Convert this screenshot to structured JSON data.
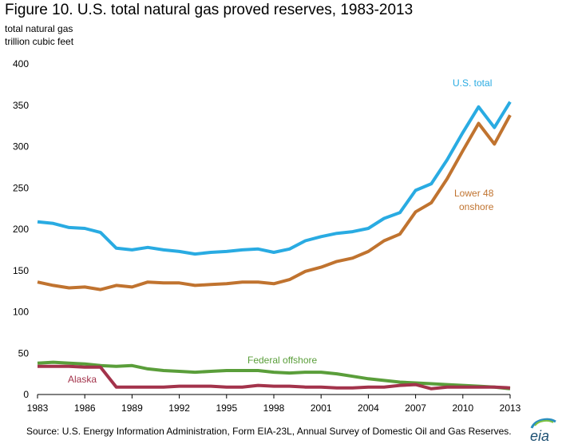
{
  "title": "Figure 10. U.S. total natural gas proved reserves, 1983-2013",
  "ylabel_line1": "total natural gas",
  "ylabel_line2": "trillion cubic feet",
  "source": "Source: U.S. Energy Information Administration, Form EIA-23L, Annual Survey of Domestic Oil and Gas Reserves.",
  "logo_text": "eia",
  "chart_data": {
    "type": "line",
    "xlim": [
      1983,
      2013
    ],
    "ylim": [
      0,
      400
    ],
    "x_ticks": [
      1983,
      1986,
      1989,
      1992,
      1995,
      1998,
      2001,
      2004,
      2007,
      2010,
      2013
    ],
    "y_ticks": [
      0,
      50,
      100,
      150,
      200,
      250,
      300,
      350,
      400
    ],
    "grid": false,
    "x": [
      1983,
      1984,
      1985,
      1986,
      1987,
      1988,
      1989,
      1990,
      1991,
      1992,
      1993,
      1994,
      1995,
      1996,
      1997,
      1998,
      1999,
      2000,
      2001,
      2002,
      2003,
      2004,
      2005,
      2006,
      2007,
      2008,
      2009,
      2010,
      2011,
      2012,
      2013
    ],
    "series": [
      {
        "name": "U.S. total",
        "color": "#29abe2",
        "values": [
          209,
          207,
          202,
          201,
          196,
          177,
          175,
          178,
          175,
          173,
          170,
          172,
          173,
          175,
          176,
          172,
          176,
          186,
          191,
          195,
          197,
          201,
          213,
          220,
          247,
          255,
          284,
          317,
          348,
          323,
          354
        ]
      },
      {
        "name": "Lower 48 onshore",
        "color": "#c0732f",
        "values": [
          136,
          132,
          129,
          130,
          127,
          132,
          130,
          136,
          135,
          135,
          132,
          133,
          134,
          136,
          136,
          134,
          139,
          149,
          154,
          161,
          165,
          173,
          186,
          194,
          221,
          232,
          261,
          295,
          328,
          303,
          338
        ]
      },
      {
        "name": "Federal offshore",
        "color": "#5a9e3a",
        "values": [
          38,
          39,
          38,
          37,
          35,
          34,
          35,
          31,
          29,
          28,
          27,
          28,
          29,
          29,
          29,
          27,
          26,
          27,
          27,
          25,
          22,
          19,
          17,
          15,
          14,
          13,
          12,
          11,
          10,
          9,
          7
        ]
      },
      {
        "name": "Alaska",
        "color": "#a3334b",
        "values": [
          34,
          34,
          34,
          33,
          33,
          9,
          9,
          9,
          9,
          10,
          10,
          10,
          9,
          9,
          11,
          10,
          10,
          9,
          9,
          8,
          8,
          9,
          9,
          11,
          12,
          7,
          9,
          9,
          9,
          9,
          8
        ]
      }
    ],
    "labels": {
      "us_total": "U.S. total",
      "lower48_line1": "Lower 48",
      "lower48_line2": "onshore",
      "offshore": "Federal offshore",
      "alaska": "Alaska"
    }
  }
}
